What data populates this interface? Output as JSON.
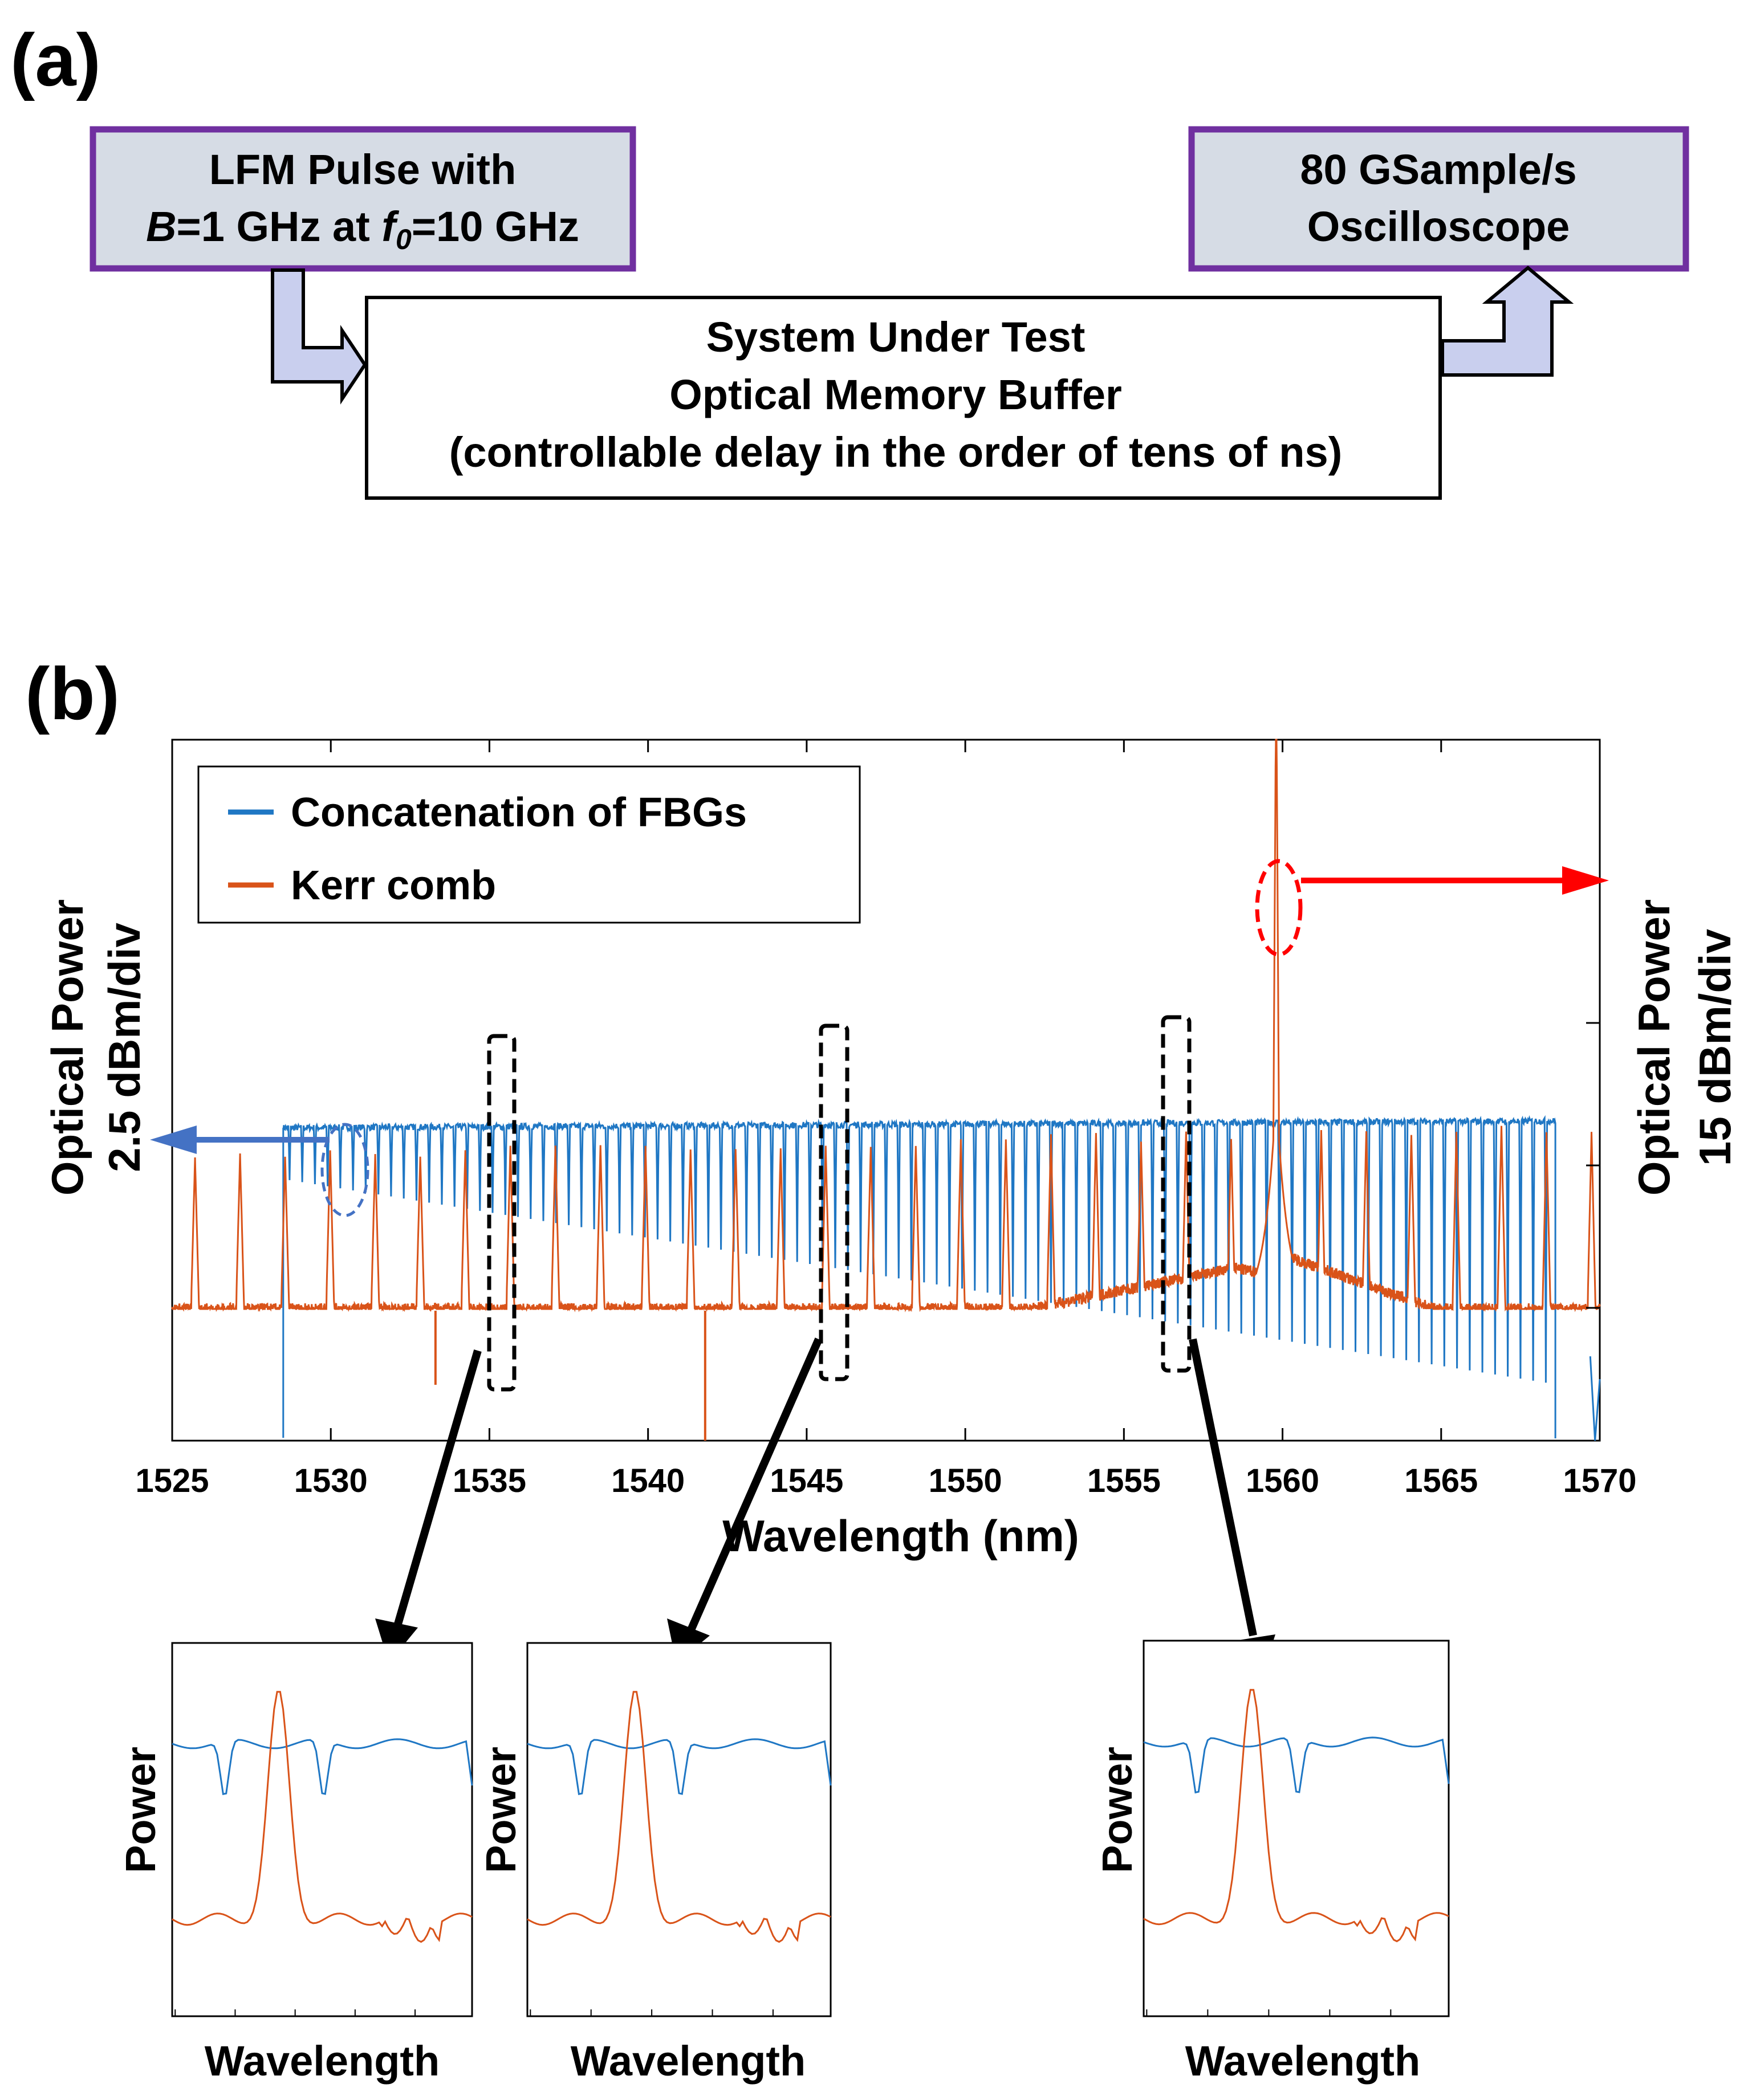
{
  "panel_a": {
    "label": "(a)",
    "source_box": {
      "line1": "LFM Pulse with",
      "line2_b": "B",
      "line2_mid": "=1 GHz at ",
      "line2_f": "f",
      "line2_sub": "0",
      "line2_end": "=10 GHz"
    },
    "scope_box": {
      "line1": "80 GSample/s",
      "line2": "Oscilloscope"
    },
    "sut_box": {
      "line1": "System Under Test",
      "line2": "Optical Memory Buffer",
      "line3": "(controllable delay in the order of tens of ns)"
    }
  },
  "panel_b": {
    "label": "(b)"
  },
  "colors": {
    "fbg": "#1f77c4",
    "kerr": "#d95319",
    "purple": "#7030a0",
    "box_fill": "#d6dce5",
    "arrow_fill": "#c9cfee",
    "red_arrow": "#ff0000",
    "blue_arrow": "#4472c4"
  },
  "chart_data": {
    "type": "line",
    "xlabel": "Wavelength (nm)",
    "ylabel_left": [
      "Optical Power",
      "2.5 dBm/div"
    ],
    "ylabel_right": [
      "Optical Power",
      "15 dBm/div"
    ],
    "xlim": [
      1525,
      1570
    ],
    "xticks": [
      "1525",
      "1530",
      "1535",
      "1540",
      "1545",
      "1550",
      "1555",
      "1560",
      "1565",
      "1570"
    ],
    "series": [
      {
        "name": "Concatenation of FBGs",
        "color": "#1f77c4",
        "x_start": 1528.5,
        "x_end": 1568.6,
        "notch_spacing_nm": 0.4,
        "level_divs_start": 1.1,
        "level_divs_end": 1.3
      },
      {
        "name": "Kerr comb",
        "color": "#d95319",
        "pump_nm": 1559.8,
        "line_spacing_nm": 1.42,
        "floor_divs": 0.0
      }
    ],
    "insets": [
      {
        "xlabel": "Wavelength",
        "ylabel": "Power"
      },
      {
        "xlabel": "Wavelength",
        "ylabel": "Power"
      },
      {
        "xlabel": "Wavelength",
        "ylabel": "Power"
      }
    ]
  }
}
